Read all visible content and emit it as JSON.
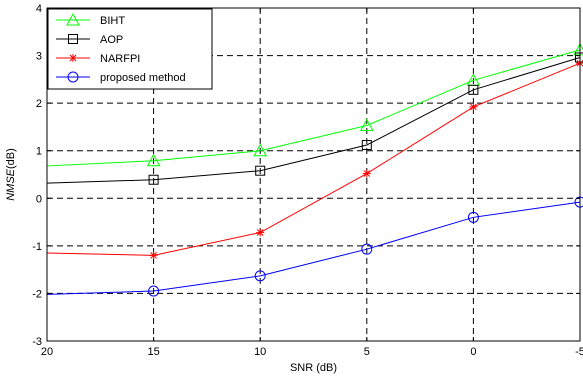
{
  "chart_data": {
    "type": "line",
    "title": "",
    "xlabel": "SNR (dB)",
    "ylabel_parts": [
      "NMSE",
      "(dB)"
    ],
    "x_reversed": true,
    "xlim": [
      20,
      -5
    ],
    "ylim": [
      -3,
      4
    ],
    "x_ticks": [
      20,
      15,
      10,
      5,
      0,
      -5
    ],
    "y_ticks": [
      -3,
      -2,
      -1,
      0,
      1,
      2,
      3,
      4
    ],
    "grid": "dashed",
    "legend_position": "top-left",
    "x": [
      20,
      15,
      10,
      5,
      0,
      -5
    ],
    "series": [
      {
        "name": "BIHT",
        "color": "#00ff00",
        "marker": "triangle",
        "values": [
          0.68,
          0.79,
          1.0,
          1.53,
          2.48,
          3.12
        ]
      },
      {
        "name": "AOP",
        "color": "#000000",
        "marker": "square",
        "values": [
          0.32,
          0.39,
          0.58,
          1.12,
          2.28,
          2.96
        ]
      },
      {
        "name": "NARFPI",
        "color": "#ff0000",
        "marker": "asterisk",
        "values": [
          -1.15,
          -1.2,
          -0.72,
          0.52,
          1.92,
          2.84
        ]
      },
      {
        "name": "proposed method",
        "color": "#0000ff",
        "marker": "circle",
        "values": [
          -2.02,
          -1.95,
          -1.63,
          -1.07,
          -0.4,
          -0.08
        ]
      }
    ]
  }
}
